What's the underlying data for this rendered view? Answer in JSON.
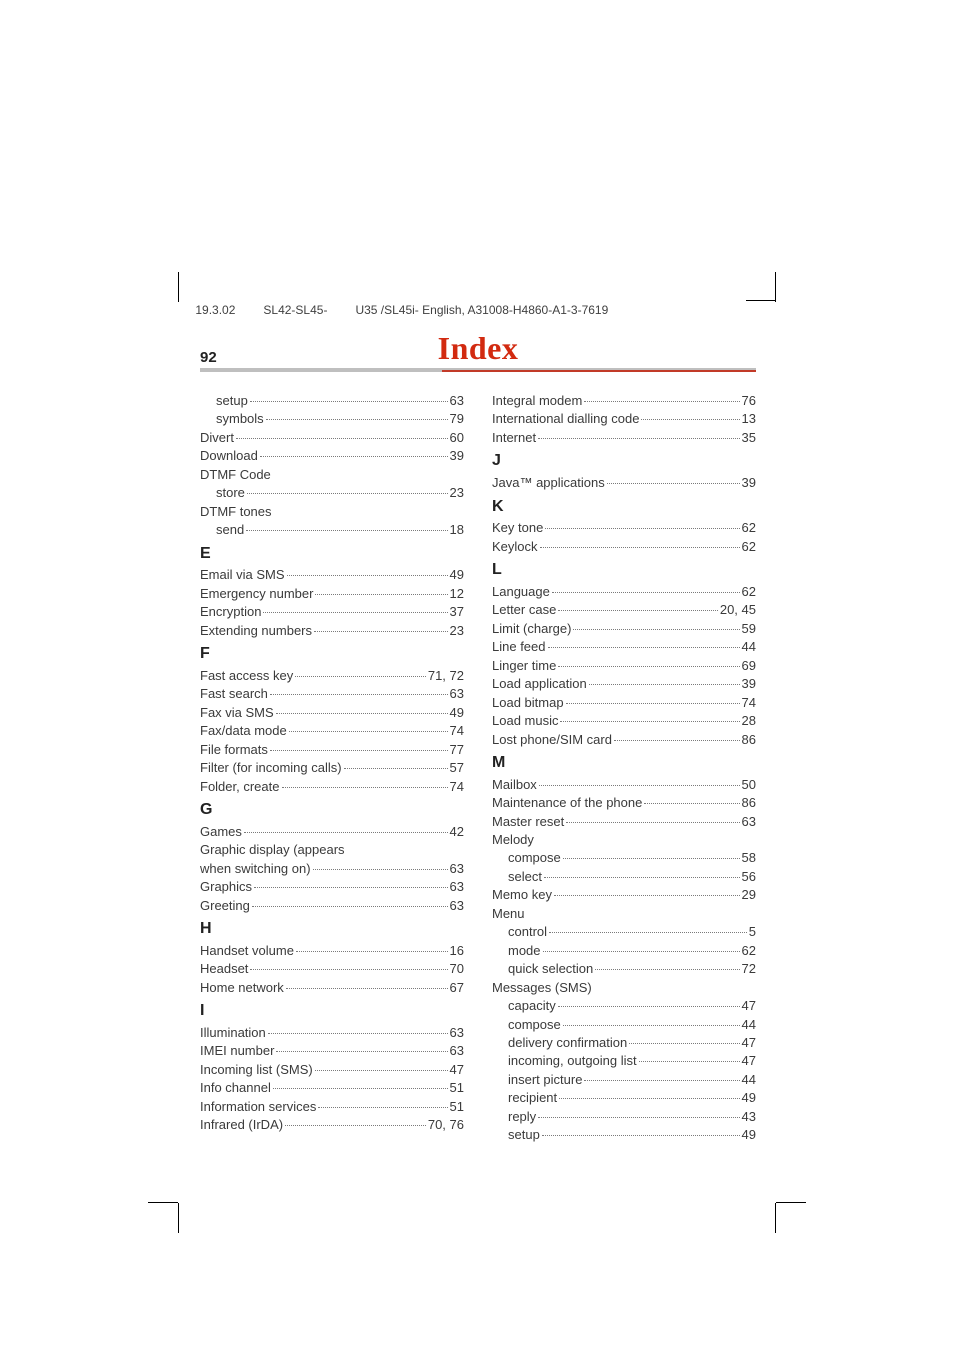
{
  "header": {
    "date": "19.3.02",
    "model": "SL42-SL45-",
    "doc": "U35 /SL45i- English, A31008-H4860-A1-3-7619"
  },
  "pageNumber": "92",
  "title": "Index",
  "colors": {
    "title": "#d22a10",
    "ruleGray": "#bfbfbf",
    "ruleRed": "#c23a28",
    "text": "#3a3a3a",
    "dots": "#7a7a7a",
    "background": "#ffffff"
  },
  "typography": {
    "title_fontsize": 32,
    "title_family": "serif",
    "pagenum_fontsize": 15,
    "body_fontsize": 13,
    "section_fontsize": 16,
    "header_fontsize": 12
  },
  "left": [
    {
      "label": "setup",
      "page": "63",
      "indent": true
    },
    {
      "label": "symbols",
      "page": "79",
      "indent": true
    },
    {
      "label": "Divert",
      "page": "60"
    },
    {
      "label": "Download",
      "page": "39"
    },
    {
      "label": "DTMF Code",
      "noleader": true
    },
    {
      "label": "store",
      "page": "23",
      "indent": true
    },
    {
      "label": "DTMF tones",
      "noleader": true
    },
    {
      "label": "send",
      "page": "18",
      "indent": true
    },
    {
      "section": "E"
    },
    {
      "label": "Email via SMS",
      "page": "49"
    },
    {
      "label": "Emergency number",
      "page": "12"
    },
    {
      "label": "Encryption",
      "page": "37"
    },
    {
      "label": "Extending numbers",
      "page": "23"
    },
    {
      "section": "F"
    },
    {
      "label": "Fast access key",
      "page": "71, 72"
    },
    {
      "label": "Fast search",
      "page": "63"
    },
    {
      "label": "Fax via SMS",
      "page": "49"
    },
    {
      "label": "Fax/data mode",
      "page": "74"
    },
    {
      "label": "File formats",
      "page": "77"
    },
    {
      "label": "Filter (for incoming calls)",
      "page": "57"
    },
    {
      "label": "Folder, create",
      "page": "74"
    },
    {
      "section": "G"
    },
    {
      "label": "Games",
      "page": "42"
    },
    {
      "label": "Graphic display (appears",
      "noleader": true
    },
    {
      "label": "when switching on)",
      "page": "63"
    },
    {
      "label": "Graphics",
      "page": "63"
    },
    {
      "label": "Greeting",
      "page": "63"
    },
    {
      "section": "H"
    },
    {
      "label": "Handset volume",
      "page": "16"
    },
    {
      "label": "Headset",
      "page": "70"
    },
    {
      "label": "Home network",
      "page": "67"
    },
    {
      "section": "I"
    },
    {
      "label": "Illumination",
      "page": "63"
    },
    {
      "label": "IMEI number",
      "page": "63"
    },
    {
      "label": "Incoming list (SMS)",
      "page": "47"
    },
    {
      "label": "Info channel",
      "page": "51"
    },
    {
      "label": "Information services",
      "page": "51"
    },
    {
      "label": "Infrared (IrDA)",
      "page": "70, 76"
    }
  ],
  "right": [
    {
      "label": "Integral modem",
      "page": "76"
    },
    {
      "label": "International dialling code",
      "page": "13"
    },
    {
      "label": "Internet",
      "page": "35"
    },
    {
      "section": "J"
    },
    {
      "label": "Java™ applications",
      "page": "39"
    },
    {
      "section": "K"
    },
    {
      "label": "Key tone",
      "page": "62"
    },
    {
      "label": "Keylock",
      "page": "62"
    },
    {
      "section": "L"
    },
    {
      "label": "Language",
      "page": "62"
    },
    {
      "label": "Letter case",
      "page": "20, 45"
    },
    {
      "label": "Limit (charge)",
      "page": "59"
    },
    {
      "label": "Line feed",
      "page": "44"
    },
    {
      "label": "Linger time",
      "page": "69"
    },
    {
      "label": "Load application",
      "page": "39"
    },
    {
      "label": "Load bitmap",
      "page": "74"
    },
    {
      "label": "Load music",
      "page": "28"
    },
    {
      "label": "Lost phone/SIM card",
      "page": "86"
    },
    {
      "section": "M"
    },
    {
      "label": "Mailbox",
      "page": "50"
    },
    {
      "label": "Maintenance of the phone",
      "page": "86"
    },
    {
      "label": "Master reset",
      "page": "63"
    },
    {
      "label": "Melody",
      "noleader": true
    },
    {
      "label": "compose",
      "page": "58",
      "indent": true
    },
    {
      "label": "select",
      "page": "56",
      "indent": true
    },
    {
      "label": "Memo key",
      "page": "29"
    },
    {
      "label": "Menu",
      "noleader": true
    },
    {
      "label": "control",
      "page": "5",
      "indent": true
    },
    {
      "label": "mode",
      "page": "62",
      "indent": true
    },
    {
      "label": "quick selection",
      "page": "72",
      "indent": true
    },
    {
      "label": "Messages (SMS)",
      "noleader": true
    },
    {
      "label": "capacity",
      "page": "47",
      "indent": true
    },
    {
      "label": "compose",
      "page": "44",
      "indent": true
    },
    {
      "label": "delivery confirmation",
      "page": "47",
      "indent": true
    },
    {
      "label": "incoming, outgoing list",
      "page": "47",
      "indent": true
    },
    {
      "label": "insert picture",
      "page": "44",
      "indent": true
    },
    {
      "label": "recipient",
      "page": "49",
      "indent": true
    },
    {
      "label": "reply",
      "page": "43",
      "indent": true
    },
    {
      "label": "setup",
      "page": "49",
      "indent": true
    }
  ]
}
